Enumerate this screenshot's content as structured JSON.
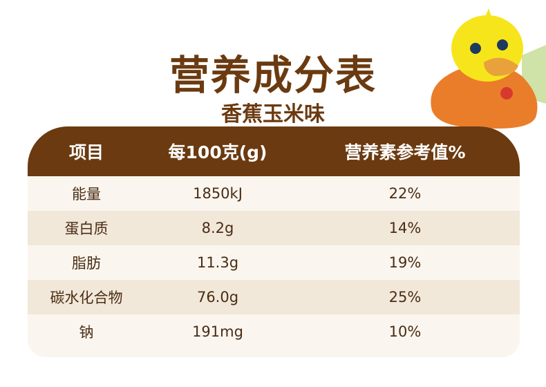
{
  "title": "营养成分表",
  "subtitle": "香蕉玉米味",
  "table": {
    "headers": [
      "项目",
      "每100克(g)",
      "营养素参考值%"
    ],
    "rows": [
      [
        "能量",
        "1850kJ",
        "22%"
      ],
      [
        "蛋白质",
        "8.2g",
        "14%"
      ],
      [
        "脂肪",
        "11.3g",
        "19%"
      ],
      [
        "碳水化合物",
        "76.0g",
        "25%"
      ],
      [
        "钠",
        "191mg",
        "10%"
      ]
    ]
  },
  "colors": {
    "brand_brown": "#6b3a10",
    "row_light": "#faf6ef",
    "row_alt": "#f1e8da",
    "mascot_yellow": "#f7e51c",
    "mascot_orange": "#ea7d2a"
  }
}
